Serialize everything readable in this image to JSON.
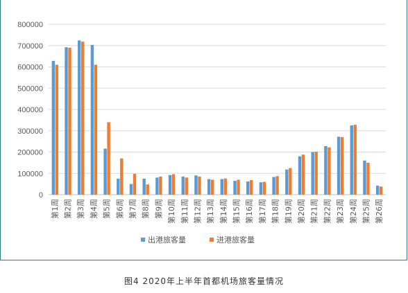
{
  "caption": "图4  2020年上半年首都机场旅客量情况",
  "colors": {
    "outbound": "#5B9BD5",
    "inbound": "#ED7D31",
    "frame": "#2E7F7F",
    "grid": "#D9D9D9",
    "axis_text": "#595959"
  },
  "chart_data": {
    "type": "bar",
    "categories": [
      "第1周",
      "第2周",
      "第3周",
      "第4周",
      "第5周",
      "第6周",
      "第7周",
      "第8周",
      "第9周",
      "第10周",
      "第11周",
      "第12周",
      "第13周",
      "第14周",
      "第15周",
      "第16周",
      "第17周",
      "第18周",
      "第19周",
      "第20周",
      "第21周",
      "第22周",
      "第23周",
      "第24周",
      "第25周",
      "第26周"
    ],
    "series": [
      {
        "name": "出港旅客量",
        "values": [
          628000,
          692000,
          724000,
          703000,
          216000,
          75000,
          50000,
          75000,
          80000,
          92000,
          85000,
          90000,
          73000,
          73000,
          65000,
          62000,
          58000,
          83000,
          118000,
          180000,
          200000,
          228000,
          272000,
          325000,
          160000,
          42000
        ]
      },
      {
        "name": "进港旅客量",
        "values": [
          610000,
          690000,
          718000,
          610000,
          340000,
          170000,
          98000,
          48000,
          85000,
          96000,
          80000,
          85000,
          70000,
          76000,
          70000,
          68000,
          60000,
          87000,
          125000,
          188000,
          202000,
          222000,
          270000,
          328000,
          150000,
          38000
        ]
      }
    ],
    "ylim": [
      0,
      800000
    ],
    "yticks": [
      "0",
      "100000",
      "200000",
      "300000",
      "400000",
      "500000",
      "600000",
      "700000",
      "800000"
    ],
    "legend": [
      "出港旅客量",
      "进港旅客量"
    ],
    "legend_position": "bottom",
    "grid": true
  }
}
